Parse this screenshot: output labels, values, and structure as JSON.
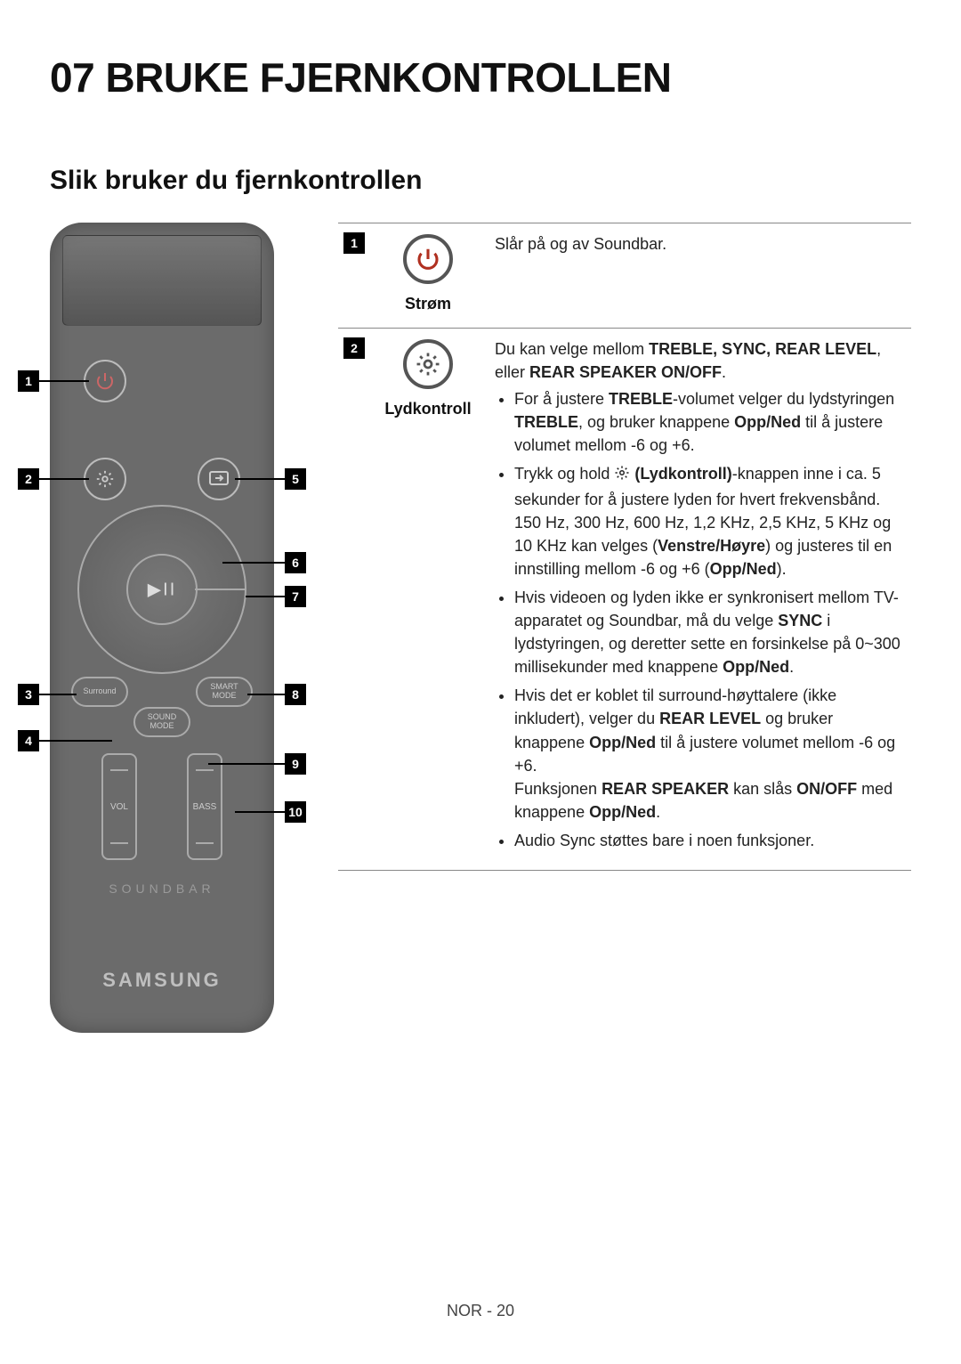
{
  "title": "07   BRUKE FJERNKONTROLLEN",
  "section": "Slik bruker du fjernkontrollen",
  "footer": "NOR - 20",
  "remote": {
    "labels": {
      "surround": "Surround",
      "smart_mode": "SMART\nMODE",
      "sound_mode": "SOUND\nMODE",
      "vol": "VOL",
      "bass": "BASS",
      "soundbar": "SOUNDBAR",
      "brand": "SAMSUNG"
    },
    "callouts": [
      "1",
      "2",
      "3",
      "4",
      "5",
      "6",
      "7",
      "8",
      "9",
      "10"
    ]
  },
  "rows": [
    {
      "num": "1",
      "icon_label": "Strøm",
      "intro": "Slår på og av Soundbar."
    },
    {
      "num": "2",
      "icon_label": "Lydkontroll",
      "intro_html": "Du kan velge mellom <b>TREBLE, SYNC, REAR LEVEL</b>, eller <b>REAR SPEAKER ON/OFF</b>.",
      "bullets_html": [
        "For å justere <b>TREBLE</b>-volumet velger du lydstyringen <b>TREBLE</b>, og bruker knappene <b>Opp/Ned</b> til å justere volumet mellom -6 og +6.",
        "Trykk og hold <span class=\"lk-gear\"><svg width=\"18\" height=\"18\" viewBox=\"0 0 24 24\"><g fill=\"none\" stroke=\"#222\" stroke-width=\"2\"><circle cx=\"12\" cy=\"12\" r=\"3\"/><path d=\"M12 2v3M12 19v3M2 12h3M19 12h3M4.9 4.9l2.1 2.1M17 17l2.1 2.1M4.9 19.1L7 17M17 7l2.1-2.1\"/></g></svg></span> <b>(Lydkontroll)</b>-knappen inne i ca. 5 sekunder for å justere lyden for hvert frekvensbånd. 150 Hz, 300 Hz, 600 Hz, 1,2 KHz, 2,5 KHz, 5 KHz og 10 KHz kan velges (<b>Venstre/Høyre</b>) og justeres til en innstilling mellom -6 og +6 (<b>Opp/Ned</b>).",
        "Hvis videoen og lyden ikke er synkronisert mellom TV-apparatet og Soundbar, må du velge <b>SYNC</b> i lydstyringen, og deretter sette en forsinkelse på 0~300 millisekunder med knappene <b>Opp/Ned</b>.",
        "Hvis det er koblet til surround-høyttalere (ikke inkludert), velger du <b>REAR LEVEL</b> og bruker knappene <b>Opp/Ned</b> til å justere volumet mellom -6 og +6.<br>Funksjonen <b>REAR SPEAKER</b> kan slås <b>ON/OFF</b> med knappene <b>Opp/Ned</b>.",
        "Audio Sync støttes bare i noen funksjoner."
      ]
    }
  ]
}
